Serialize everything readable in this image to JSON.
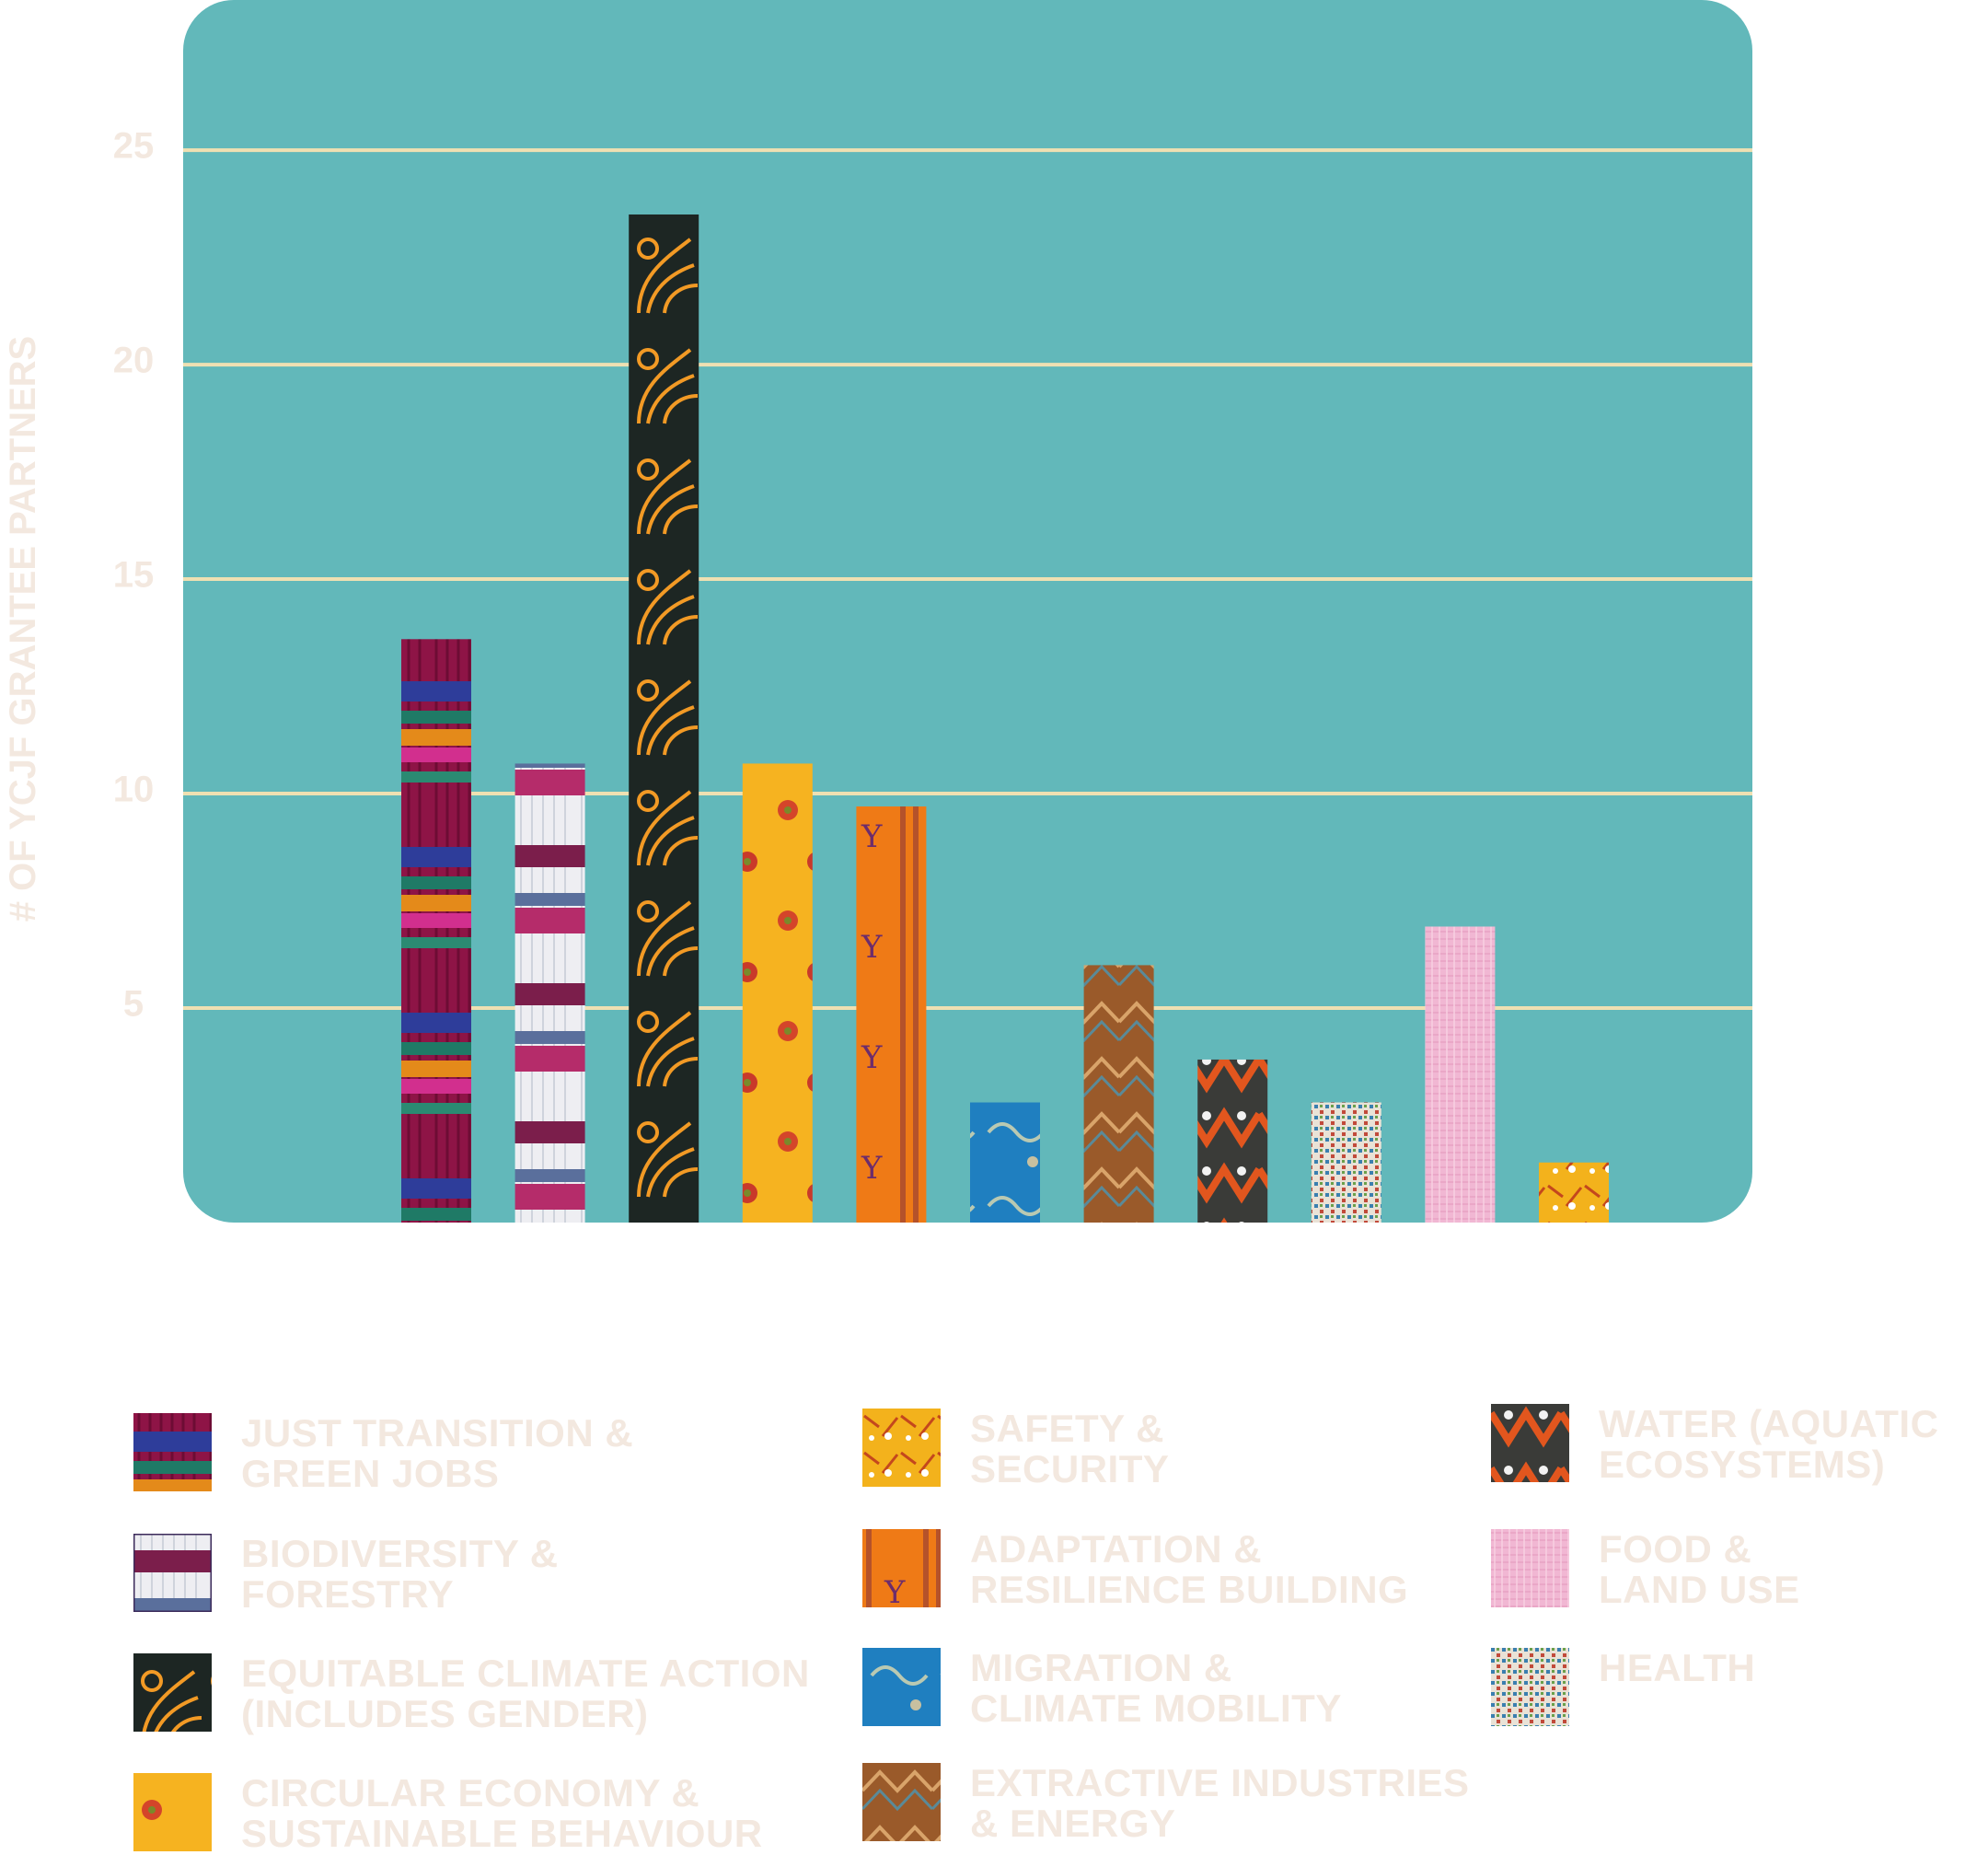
{
  "chart_data": {
    "type": "bar",
    "title": "",
    "xlabel": "",
    "ylabel": "# OF YCJF GRANTEE PARTNERS",
    "ylim": [
      0,
      28.5
    ],
    "yticks": [
      5,
      10,
      15,
      20,
      25
    ],
    "grid": true,
    "legend_position": "bottom",
    "colors": {
      "panel": "#62b8ba",
      "gridline": "#efe0b2",
      "label": "#f3e8df"
    },
    "categories": [
      "JUST TRANSITION & GREEN JOBS",
      "BIODIVERSITY & FORESTRY",
      "EQUITABLE CLIMATE ACTION (INCLUDES GENDER)",
      "CIRCULAR ECONOMY & SUSTAINABLE BEHAVIOUR",
      "ADAPTATION & RESILIENCE BUILDING",
      "MIGRATION & CLIMATE MOBILITY",
      "EXTRACTIVE INDUSTRIES & ENERGY",
      "WATER (AQUATIC ECOSYSTEMS)",
      "HEALTH",
      "FOOD & LAND USE",
      "SAFETY & SECURITY"
    ],
    "values": [
      13.6,
      10.7,
      23.5,
      10.7,
      9.7,
      2.8,
      6.0,
      3.8,
      2.8,
      6.9,
      1.4
    ],
    "bar_patterns": [
      "maroon-woven",
      "white-maroon-stripe",
      "black-orange-floral",
      "yellow-floral",
      "orange-embroidered",
      "blue-brocade",
      "brown-mirrorwork",
      "orange-zigzag",
      "multicolor-weave",
      "pink-weave",
      "yellow-print"
    ],
    "legend": [
      {
        "label": "JUST TRANSITION &\nGREEN JOBS",
        "pattern": "maroon-woven"
      },
      {
        "label": "BIODIVERSITY &\nFORESTRY",
        "pattern": "white-maroon-stripe"
      },
      {
        "label": "EQUITABLE CLIMATE ACTION\n(INCLUDES GENDER)",
        "pattern": "black-orange-floral"
      },
      {
        "label": "CIRCULAR ECONOMY &\nSUSTAINABLE BEHAVIOUR",
        "pattern": "yellow-floral"
      },
      {
        "label": "SAFETY &\nSECURITY",
        "pattern": "yellow-print"
      },
      {
        "label": "ADAPTATION &\nRESILIENCE BUILDING",
        "pattern": "orange-embroidered"
      },
      {
        "label": "MIGRATION &\nCLIMATE MOBILITY",
        "pattern": "blue-brocade"
      },
      {
        "label": "EXTRACTIVE INDUSTRIES\n& ENERGY",
        "pattern": "brown-mirrorwork"
      },
      {
        "label": "WATER (AQUATIC\nECOSYSTEMS)",
        "pattern": "orange-zigzag"
      },
      {
        "label": "FOOD &\nLAND USE",
        "pattern": "pink-weave"
      },
      {
        "label": "HEALTH",
        "pattern": "multicolor-weave"
      }
    ]
  }
}
